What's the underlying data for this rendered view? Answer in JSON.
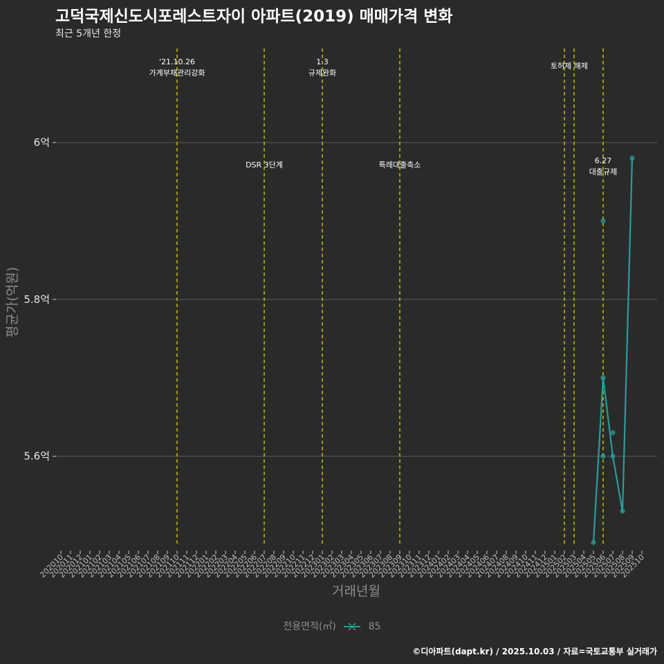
{
  "title": "고덕국제신도시포레스트자이 아파트(2019) 매매가격 변화",
  "subtitle": "최근 5개년 한정",
  "caption": "©디아파트(dapt.kr) / 2025.10.03 / 자료=국토교통부 실거래가",
  "legend": {
    "title": "전용면적(㎡)",
    "items": [
      {
        "label": "85",
        "color": "#2a9d9a"
      }
    ]
  },
  "colors": {
    "line": "#2a9d9a",
    "event": "#e6e600",
    "grid": "#5a5a5a"
  },
  "chart_data": {
    "type": "line",
    "title": "고덕국제신도시포레스트자이 아파트(2019) 매매가격 변화",
    "xlabel": "거래년월",
    "ylabel": "평균가(억원)",
    "categories": [
      "202010",
      "202011",
      "202012",
      "202101",
      "202102",
      "202103",
      "202104",
      "202105",
      "202106",
      "202107",
      "202108",
      "202109",
      "202110",
      "202111",
      "202112",
      "202201",
      "202202",
      "202203",
      "202204",
      "202205",
      "202206",
      "202207",
      "202208",
      "202209",
      "202210",
      "202211",
      "202212",
      "202301",
      "202302",
      "202303",
      "202304",
      "202305",
      "202306",
      "202307",
      "202308",
      "202309",
      "202310",
      "202311",
      "202312",
      "202401",
      "202402",
      "202403",
      "202404",
      "202405",
      "202406",
      "202407",
      "202408",
      "202409",
      "202410",
      "202411",
      "202412",
      "202501",
      "202502",
      "202503",
      "202504",
      "202505",
      "202506",
      "202507",
      "202508",
      "202509",
      "202510"
    ],
    "ylim": [
      5.485,
      6.12
    ],
    "yticks": [
      5.6,
      5.8,
      6.0
    ],
    "ytick_labels": [
      "5.6억",
      "5.8억",
      "6억"
    ],
    "series": [
      {
        "name": "85",
        "line": [
          {
            "x": "202505",
            "y": 5.49
          },
          {
            "x": "202506",
            "y": 5.7
          },
          {
            "x": "202507",
            "y": 5.6
          },
          {
            "x": "202508",
            "y": 5.53
          },
          {
            "x": "202509",
            "y": 5.98
          }
        ],
        "points": [
          {
            "x": "202505",
            "y": 5.49
          },
          {
            "x": "202506",
            "y": 5.9
          },
          {
            "x": "202506",
            "y": 5.7
          },
          {
            "x": "202506",
            "y": 5.6
          },
          {
            "x": "202507",
            "y": 5.63
          },
          {
            "x": "202507",
            "y": 5.6
          },
          {
            "x": "202508",
            "y": 5.53
          },
          {
            "x": "202509",
            "y": 5.98
          }
        ]
      }
    ],
    "events": [
      {
        "x": "202110",
        "lines": [
          "'21.10.26",
          "가계부채관리강화"
        ],
        "row": "top"
      },
      {
        "x": "202207",
        "lines": [
          "DSR 3단계"
        ],
        "row": "mid"
      },
      {
        "x": "202301",
        "lines": [
          "1.3",
          "규제완화"
        ],
        "row": "top"
      },
      {
        "x": "202309",
        "lines": [
          "특례대출축소"
        ],
        "row": "mid"
      },
      {
        "x": "202502",
        "lines": [
          "토허제 해제"
        ],
        "row": "top",
        "offset": 0.5
      },
      {
        "x": "202503",
        "lines": [],
        "row": "top"
      },
      {
        "x": "202506",
        "lines": [
          "6.27",
          "대출규제"
        ],
        "row": "mid"
      }
    ]
  }
}
